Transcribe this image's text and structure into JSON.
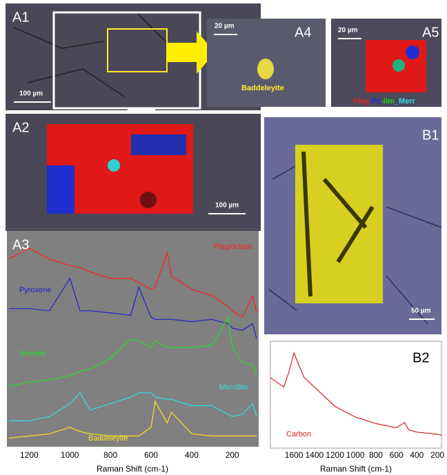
{
  "panels": {
    "A1": {
      "label": "A1",
      "scale": "100 µm"
    },
    "A2": {
      "label": "A2",
      "scale": "100 µm"
    },
    "A4": {
      "label": "A4",
      "scale": "20 µm",
      "mineral": "Baddeleyite"
    },
    "A5": {
      "label": "A5",
      "scale": "20 µm",
      "legend": [
        {
          "text": "Plag",
          "color": "#e0202a"
        },
        {
          "text": "-Px",
          "color": "#2030e0"
        },
        {
          "text": "-Ilm",
          "color": "#20d020"
        },
        {
          "text": "_Merr",
          "color": "#30e0e0"
        }
      ]
    },
    "B1": {
      "label": "B1",
      "scale": "50 µm"
    }
  },
  "chart_data": [
    {
      "type": "line",
      "label": "A3",
      "x_label": "Raman Shift (cm-1)",
      "x": [
        1300,
        1200,
        1100,
        1000,
        950,
        900,
        800,
        700,
        660,
        600,
        580,
        520,
        500,
        400,
        300,
        220,
        200,
        150,
        100,
        80
      ],
      "xlim": [
        1310,
        70
      ],
      "xticks": [
        1200,
        1000,
        800,
        600,
        400,
        200
      ],
      "ylim": [
        0,
        100
      ],
      "series": [
        {
          "name": "Plagioclase",
          "color": "#ff2020",
          "values": [
            87,
            92,
            87,
            84,
            83,
            81,
            78,
            78,
            76,
            73,
            74,
            90,
            79,
            73,
            70,
            65,
            63,
            60,
            70,
            62
          ]
        },
        {
          "name": "Pyroxene",
          "color": "#2020d0",
          "values": [
            64,
            64,
            63,
            78,
            63,
            63,
            62,
            61,
            74,
            60,
            59,
            59,
            59,
            58,
            59,
            57,
            55,
            54,
            57,
            50
          ]
        },
        {
          "name": "Ilmenite",
          "color": "#20e020",
          "values": [
            28,
            30,
            31,
            33,
            35,
            36,
            41,
            50,
            49,
            46,
            49,
            46,
            46,
            46,
            47,
            60,
            46,
            39,
            38,
            33
          ]
        },
        {
          "name": "Merrillite",
          "color": "#30e0e0",
          "values": [
            12,
            12,
            14,
            20,
            25,
            17,
            20,
            23,
            25,
            25,
            23,
            22,
            22,
            19,
            19,
            15,
            14,
            15,
            20,
            14
          ]
        },
        {
          "name": "Baddeleyite",
          "color": "#ffe020",
          "values": [
            4,
            5,
            6,
            9,
            7,
            6,
            5,
            5,
            5,
            9,
            21,
            11,
            16,
            6,
            5,
            5,
            5,
            5,
            5,
            5
          ]
        }
      ]
    },
    {
      "type": "line",
      "label": "B2",
      "x_label": "Raman Shift (cm-1)",
      "x": [
        1830,
        1700,
        1650,
        1600,
        1550,
        1500,
        1400,
        1300,
        1200,
        1000,
        800,
        600,
        520,
        480,
        400,
        300,
        200,
        160
      ],
      "xlim": [
        1830,
        160
      ],
      "xticks": [
        1600,
        1400,
        1200,
        1000,
        800,
        600,
        400,
        200
      ],
      "ylim": [
        0,
        100
      ],
      "series": [
        {
          "name": "Carbon",
          "color": "#d02020",
          "values": [
            66,
            57,
            71,
            89,
            77,
            66,
            57,
            48,
            39,
            29,
            23,
            19,
            24,
            17,
            15,
            14,
            13,
            12
          ]
        }
      ]
    }
  ]
}
